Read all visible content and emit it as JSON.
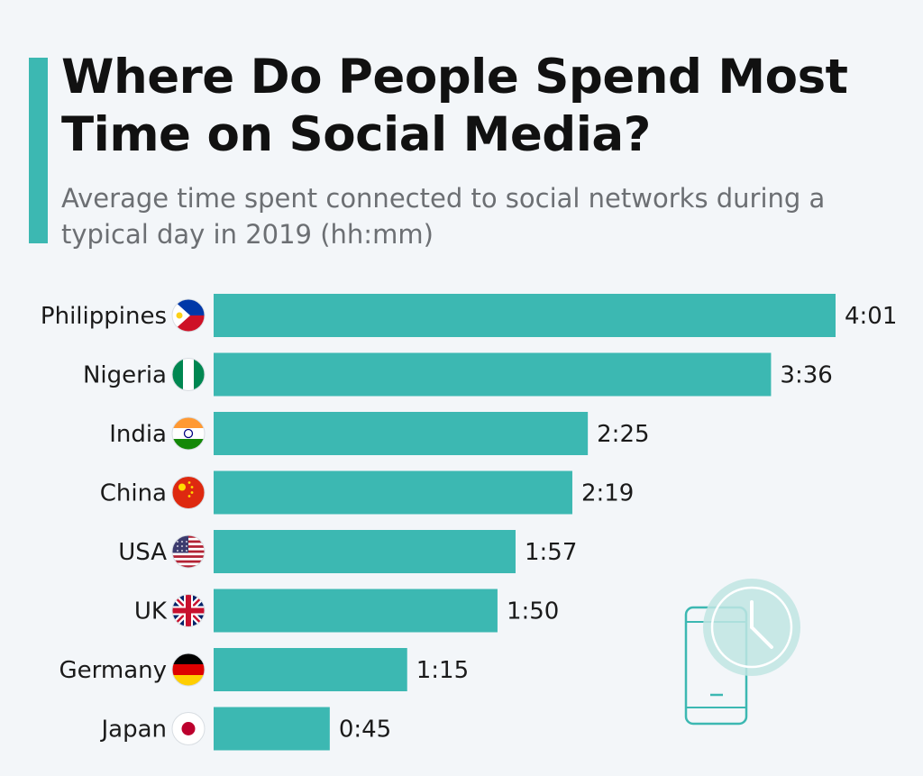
{
  "title": "Where Do People Spend Most Time on Social Media?",
  "subtitle": "Average time spent connected to social networks during a typical day in 2019 (hh:mm)",
  "colors": {
    "accent": "#3cb8b2",
    "background": "#f3f6f9"
  },
  "decoration": {
    "icon": "phone-clock-icon"
  },
  "chart_data": {
    "type": "bar",
    "orientation": "horizontal",
    "categories": [
      "Philippines",
      "Nigeria",
      "India",
      "China",
      "USA",
      "UK",
      "Germany",
      "Japan"
    ],
    "values": [
      241,
      216,
      145,
      139,
      117,
      110,
      75,
      45
    ],
    "value_labels": [
      "4:01",
      "3:36",
      "2:25",
      "2:19",
      "1:57",
      "1:50",
      "1:15",
      "0:45"
    ],
    "flags": [
      "philippines-flag-icon",
      "nigeria-flag-icon",
      "india-flag-icon",
      "china-flag-icon",
      "usa-flag-icon",
      "uk-flag-icon",
      "germany-flag-icon",
      "japan-flag-icon"
    ],
    "unit": "minutes",
    "xlim": [
      0,
      241
    ],
    "grid": false,
    "title": "",
    "xlabel": "",
    "ylabel": ""
  }
}
